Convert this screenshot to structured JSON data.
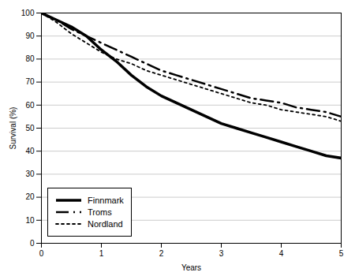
{
  "chart_data": {
    "type": "line",
    "xlabel": "Years",
    "ylabel": "Survival (%)",
    "x": [
      0,
      0.25,
      0.5,
      0.75,
      1.0,
      1.25,
      1.5,
      1.75,
      2.0,
      2.25,
      2.5,
      2.75,
      3.0,
      3.25,
      3.5,
      3.75,
      4.0,
      4.25,
      4.5,
      4.75,
      5.0
    ],
    "series": [
      {
        "name": "Finnmark",
        "color": "#000000",
        "line_style": "solid",
        "values": [
          100,
          97,
          94,
          90,
          84,
          79,
          73,
          68,
          64,
          61,
          58,
          55,
          52,
          50,
          48,
          46,
          44,
          42,
          40,
          38,
          37
        ]
      },
      {
        "name": "Troms",
        "color": "#000000",
        "line_style": "dashdot",
        "values": [
          100,
          97,
          93,
          90,
          87,
          84,
          81,
          78,
          75,
          73,
          71,
          69,
          67,
          65,
          63,
          62,
          61,
          59,
          58,
          57,
          55
        ]
      },
      {
        "name": "Nordland",
        "color": "#000000",
        "line_style": "dotted",
        "values": [
          100,
          96,
          91,
          87,
          83,
          80,
          78,
          75,
          73,
          71,
          69,
          67,
          65,
          63,
          61,
          60,
          58,
          57,
          56,
          55,
          53
        ]
      }
    ],
    "xlim": [
      0,
      5
    ],
    "ylim": [
      0,
      100
    ],
    "xticks": [
      0,
      1,
      2,
      3,
      4,
      5
    ],
    "yticks": [
      0,
      10,
      20,
      30,
      40,
      50,
      60,
      70,
      80,
      90,
      100
    ],
    "grid": "y",
    "legend": "lower left"
  }
}
